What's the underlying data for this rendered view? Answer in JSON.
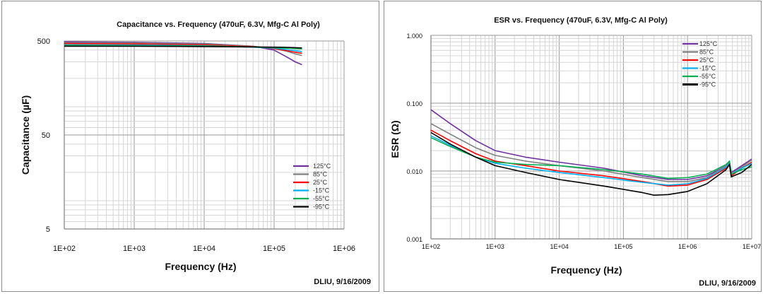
{
  "chart_data": [
    {
      "type": "line",
      "title": "Capacitance vs. Frequency (470uF, 6.3V, Mfg-C Al Poly)",
      "xlabel": "Frequency (Hz)",
      "ylabel": "Capacitance (µF)",
      "x_scale": "log",
      "y_scale": "log",
      "xlim": [
        100,
        1000000
      ],
      "ylim": [
        5,
        500
      ],
      "x_ticks": [
        "1E+02",
        "1E+03",
        "1E+04",
        "1E+05",
        "1E+06"
      ],
      "y_ticks": [
        "500",
        "50",
        "5"
      ],
      "grid": true,
      "legend_position": "bottom-right",
      "credit": "DLIU, 9/16/2009",
      "series": [
        {
          "name": "125°C",
          "color": "#7030a0",
          "points": [
            [
              100,
              490
            ],
            [
              1000,
              485
            ],
            [
              10000,
              470
            ],
            [
              50000,
              440
            ],
            [
              100000,
              400
            ],
            [
              150000,
              340
            ],
            [
              200000,
              300
            ],
            [
              250000,
              280
            ]
          ]
        },
        {
          "name": "85°C",
          "color": "#808080",
          "points": [
            [
              100,
              480
            ],
            [
              1000,
              478
            ],
            [
              10000,
              465
            ],
            [
              50000,
              440
            ],
            [
              100000,
              415
            ],
            [
              150000,
              390
            ],
            [
              200000,
              365
            ],
            [
              250000,
              350
            ]
          ]
        },
        {
          "name": "25°C",
          "color": "#ff0000",
          "points": [
            [
              100,
              470
            ],
            [
              1000,
              465
            ],
            [
              10000,
              455
            ],
            [
              50000,
              435
            ],
            [
              100000,
              415
            ],
            [
              150000,
              395
            ],
            [
              200000,
              380
            ],
            [
              250000,
              370
            ]
          ]
        },
        {
          "name": "-15°C",
          "color": "#00b0f0",
          "points": [
            [
              100,
              455
            ],
            [
              1000,
              453
            ],
            [
              10000,
              445
            ],
            [
              50000,
              430
            ],
            [
              100000,
              420
            ],
            [
              150000,
              405
            ],
            [
              200000,
              395
            ],
            [
              250000,
              385
            ]
          ]
        },
        {
          "name": "-55°C",
          "color": "#00b050",
          "points": [
            [
              100,
              450
            ],
            [
              1000,
              447
            ],
            [
              10000,
              442
            ],
            [
              50000,
              432
            ],
            [
              100000,
              425
            ],
            [
              150000,
              420
            ],
            [
              200000,
              415
            ],
            [
              250000,
              412
            ]
          ]
        },
        {
          "name": "-95°C",
          "color": "#000000",
          "points": [
            [
              100,
              440
            ],
            [
              1000,
              440
            ],
            [
              10000,
              436
            ],
            [
              50000,
              432
            ],
            [
              100000,
              430
            ],
            [
              150000,
              428
            ],
            [
              200000,
              425
            ],
            [
              250000,
              422
            ]
          ]
        }
      ]
    },
    {
      "type": "line",
      "title": "ESR vs. Frequency (470uF, 6.3V, Mfg-C Al Poly)",
      "xlabel": "Frequency (Hz)",
      "ylabel": "ESR (Ω)",
      "x_scale": "log",
      "y_scale": "log",
      "xlim": [
        100,
        10000000
      ],
      "ylim": [
        0.001,
        1
      ],
      "x_ticks": [
        "1E+02",
        "1E+03",
        "1E+04",
        "1E+05",
        "1E+06",
        "1E+07"
      ],
      "y_ticks": [
        "1.000",
        "0.100",
        "0.010",
        "0.001"
      ],
      "grid": true,
      "legend_position": "top-right",
      "credit": "DLIU, 9/16/2009",
      "series": [
        {
          "name": "125°C",
          "color": "#7030a0",
          "points": [
            [
              100,
              0.08
            ],
            [
              200,
              0.05
            ],
            [
              500,
              0.028
            ],
            [
              1000,
              0.02
            ],
            [
              3000,
              0.016
            ],
            [
              10000,
              0.0135
            ],
            [
              50000,
              0.011
            ],
            [
              200000,
              0.0085
            ],
            [
              500000,
              0.0075
            ],
            [
              1000000,
              0.0075
            ],
            [
              2000000,
              0.0085
            ],
            [
              4000000,
              0.012
            ],
            [
              4500000,
              0.014
            ],
            [
              4800000,
              0.0095
            ],
            [
              7000000,
              0.012
            ],
            [
              10000000,
              0.015
            ]
          ]
        },
        {
          "name": "85°C",
          "color": "#808080",
          "points": [
            [
              100,
              0.05
            ],
            [
              200,
              0.035
            ],
            [
              500,
              0.022
            ],
            [
              1000,
              0.017
            ],
            [
              3000,
              0.014
            ],
            [
              10000,
              0.012
            ],
            [
              50000,
              0.01
            ],
            [
              200000,
              0.008
            ],
            [
              500000,
              0.007
            ],
            [
              1000000,
              0.007
            ],
            [
              2000000,
              0.008
            ],
            [
              4000000,
              0.012
            ],
            [
              4500000,
              0.014
            ],
            [
              4800000,
              0.009
            ],
            [
              7000000,
              0.0115
            ],
            [
              10000000,
              0.0145
            ]
          ]
        },
        {
          "name": "25°C",
          "color": "#ff0000",
          "points": [
            [
              100,
              0.04
            ],
            [
              200,
              0.028
            ],
            [
              500,
              0.018
            ],
            [
              1000,
              0.014
            ],
            [
              3000,
              0.012
            ],
            [
              10000,
              0.01
            ],
            [
              50000,
              0.0085
            ],
            [
              200000,
              0.007
            ],
            [
              500000,
              0.006
            ],
            [
              1000000,
              0.0062
            ],
            [
              2000000,
              0.0075
            ],
            [
              4000000,
              0.011
            ],
            [
              4500000,
              0.013
            ],
            [
              4800000,
              0.0085
            ],
            [
              7000000,
              0.011
            ],
            [
              10000000,
              0.0135
            ]
          ]
        },
        {
          "name": "-15°C",
          "color": "#00b0f0",
          "points": [
            [
              100,
              0.033
            ],
            [
              200,
              0.024
            ],
            [
              500,
              0.016
            ],
            [
              1000,
              0.013
            ],
            [
              3000,
              0.011
            ],
            [
              10000,
              0.0095
            ],
            [
              50000,
              0.008
            ],
            [
              200000,
              0.0068
            ],
            [
              500000,
              0.0062
            ],
            [
              1000000,
              0.0065
            ],
            [
              2000000,
              0.0078
            ],
            [
              4000000,
              0.0115
            ],
            [
              4500000,
              0.013
            ],
            [
              4800000,
              0.009
            ],
            [
              7000000,
              0.011
            ],
            [
              10000000,
              0.013
            ]
          ]
        },
        {
          "name": "-55°C",
          "color": "#00b050",
          "points": [
            [
              100,
              0.031
            ],
            [
              200,
              0.023
            ],
            [
              500,
              0.016
            ],
            [
              1000,
              0.0135
            ],
            [
              3000,
              0.0125
            ],
            [
              10000,
              0.012
            ],
            [
              50000,
              0.0105
            ],
            [
              200000,
              0.009
            ],
            [
              500000,
              0.0078
            ],
            [
              1000000,
              0.008
            ],
            [
              2000000,
              0.009
            ],
            [
              4000000,
              0.0125
            ],
            [
              4500000,
              0.014
            ],
            [
              4800000,
              0.009
            ],
            [
              7000000,
              0.0105
            ],
            [
              10000000,
              0.0115
            ]
          ]
        },
        {
          "name": "-95°C",
          "color": "#000000",
          "points": [
            [
              100,
              0.037
            ],
            [
              200,
              0.025
            ],
            [
              500,
              0.016
            ],
            [
              1000,
              0.012
            ],
            [
              3000,
              0.0095
            ],
            [
              10000,
              0.0075
            ],
            [
              50000,
              0.006
            ],
            [
              200000,
              0.0048
            ],
            [
              300000,
              0.0044
            ],
            [
              500000,
              0.0045
            ],
            [
              1000000,
              0.005
            ],
            [
              2000000,
              0.0065
            ],
            [
              4000000,
              0.0105
            ],
            [
              4500000,
              0.0125
            ],
            [
              4800000,
              0.0082
            ],
            [
              7000000,
              0.0095
            ],
            [
              10000000,
              0.0125
            ]
          ]
        }
      ]
    }
  ]
}
